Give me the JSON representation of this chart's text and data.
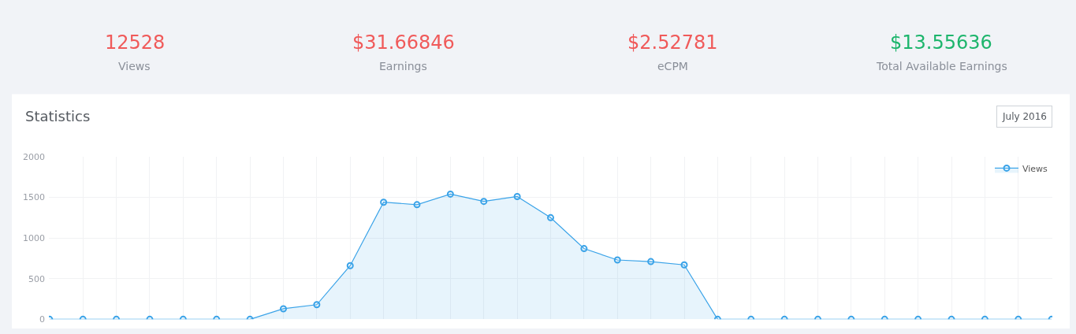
{
  "chart_data": [
    {
      "type": "other",
      "annotations": [
        "12528",
        "Views",
        "$31.66846",
        "Earnings",
        "$2.52781",
        "eCPM",
        "$13.55636",
        "Total Available Earnings"
      ],
      "colors": [
        "#f05a5a",
        "#f05a5a",
        "#f05a5a",
        "#1db56c"
      ]
    },
    {
      "type": "area",
      "title": "Statistics",
      "annotations": [
        "July 2016"
      ],
      "categories": [
        null,
        null,
        null,
        null,
        null,
        null,
        null,
        null,
        null,
        null,
        null,
        null,
        null,
        null,
        null,
        null,
        null,
        null,
        null,
        null,
        null,
        null,
        null,
        null,
        null,
        null,
        null,
        null,
        null,
        null,
        null
      ],
      "series": [
        {
          "name": "Views",
          "color": "#3aa3e8",
          "values": [
            0,
            0,
            0,
            0,
            0,
            0,
            0,
            130,
            180,
            660,
            1440,
            1410,
            1540,
            1450,
            1510,
            1250,
            870,
            730,
            710,
            670,
            0,
            0,
            0,
            0,
            0,
            0,
            0,
            0,
            0,
            0,
            0
          ]
        }
      ],
      "ylim": [
        0,
        2000
      ],
      "yticks": [
        0,
        500,
        1000,
        1500,
        2000
      ],
      "grid": true,
      "legend": "top right",
      "marker": "circle",
      "line_style": "solid"
    }
  ]
}
